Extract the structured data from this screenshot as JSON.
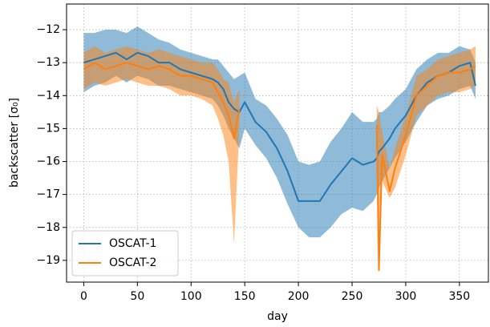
{
  "chart_data": {
    "type": "line-band",
    "x_label": "day",
    "y_label": "backscatter [σ₀]",
    "xlim": [
      -16,
      377
    ],
    "ylim": [
      -19.66,
      -11.22
    ],
    "xticks": [
      0,
      50,
      100,
      150,
      200,
      250,
      300,
      350
    ],
    "yticks": [
      {
        "value": -19,
        "label": "−19"
      },
      {
        "value": -18,
        "label": "−18"
      },
      {
        "value": -17,
        "label": "−17"
      },
      {
        "value": -16,
        "label": "−16"
      },
      {
        "value": -15,
        "label": "−15"
      },
      {
        "value": -14,
        "label": "−14"
      },
      {
        "value": -13,
        "label": "−13"
      },
      {
        "value": -12,
        "label": "−12"
      }
    ],
    "grid": true,
    "legend": "lower left",
    "x": [
      0,
      10,
      20,
      30,
      40,
      50,
      60,
      70,
      80,
      90,
      100,
      110,
      120,
      125,
      130,
      135,
      140,
      145,
      150,
      160,
      170,
      180,
      190,
      200,
      210,
      220,
      230,
      240,
      250,
      260,
      270,
      273,
      275,
      278,
      285,
      290,
      300,
      310,
      320,
      330,
      340,
      350,
      360,
      365
    ],
    "series": [
      {
        "name": "OSCAT-1",
        "color": "#1f77b4",
        "values": [
          -13.0,
          -12.9,
          -12.8,
          -12.7,
          -12.9,
          -12.7,
          -12.8,
          -13.0,
          -13.0,
          -13.2,
          -13.3,
          -13.4,
          -13.5,
          -13.6,
          -13.8,
          -14.2,
          -14.4,
          -14.5,
          -14.2,
          -14.8,
          -15.1,
          -15.6,
          -16.3,
          -17.2,
          -17.2,
          -17.2,
          -16.7,
          -16.3,
          -15.9,
          -16.1,
          -16.0,
          -15.9,
          -15.7,
          -15.6,
          -15.3,
          -15.0,
          -14.6,
          -14.0,
          -13.6,
          -13.4,
          -13.3,
          -13.1,
          -13.0,
          -13.7
        ],
        "lower": [
          -13.9,
          -13.7,
          -13.6,
          -13.4,
          -13.6,
          -13.4,
          -13.5,
          -13.7,
          -13.7,
          -13.8,
          -13.9,
          -14.0,
          -14.1,
          -14.3,
          -14.6,
          -15.0,
          -15.3,
          -15.6,
          -15.0,
          -15.5,
          -15.9,
          -16.5,
          -17.3,
          -18.0,
          -18.3,
          -18.3,
          -18.0,
          -17.6,
          -17.4,
          -17.5,
          -17.2,
          -17.0,
          -16.8,
          -16.6,
          -16.2,
          -15.9,
          -15.4,
          -14.8,
          -14.3,
          -14.1,
          -14.0,
          -13.8,
          -13.7,
          -14.1
        ],
        "upper": [
          -12.1,
          -12.1,
          -12.0,
          -12.0,
          -12.1,
          -11.9,
          -12.1,
          -12.3,
          -12.4,
          -12.6,
          -12.7,
          -12.8,
          -12.9,
          -12.9,
          -13.1,
          -13.3,
          -13.5,
          -13.4,
          -13.3,
          -14.1,
          -14.3,
          -14.7,
          -15.2,
          -16.0,
          -16.1,
          -16.0,
          -15.4,
          -15.0,
          -14.5,
          -14.8,
          -14.8,
          -14.7,
          -14.5,
          -14.5,
          -14.3,
          -14.1,
          -13.8,
          -13.2,
          -12.9,
          -12.7,
          -12.7,
          -12.5,
          -12.6,
          -13.0
        ]
      },
      {
        "name": "OSCAT-2",
        "color": "#ff7f0e",
        "values": [
          -13.2,
          -13.0,
          -13.2,
          -13.1,
          -13.0,
          -13.1,
          -13.2,
          -13.1,
          -13.2,
          -13.4,
          -13.4,
          -13.5,
          -13.6,
          -13.9,
          -14.2,
          -14.6,
          -15.3,
          -14.4,
          null,
          null,
          null,
          null,
          null,
          null,
          null,
          null,
          null,
          null,
          null,
          null,
          null,
          -14.9,
          -19.3,
          -15.8,
          -16.9,
          -16.2,
          -15.2,
          -14.0,
          -13.7,
          -13.4,
          -13.3,
          -13.3,
          -13.2,
          -13.1
        ],
        "lower": [
          -13.8,
          -13.6,
          -13.7,
          -13.6,
          -13.5,
          -13.6,
          -13.7,
          -13.7,
          -13.8,
          -14.0,
          -14.0,
          -14.1,
          -14.3,
          -14.7,
          -15.2,
          -16.0,
          -18.5,
          -15.0,
          null,
          null,
          null,
          null,
          null,
          null,
          null,
          null,
          null,
          null,
          null,
          null,
          null,
          -15.5,
          -19.4,
          -16.6,
          -17.1,
          -16.8,
          -15.8,
          -14.6,
          -14.3,
          -14.0,
          -13.9,
          -13.9,
          -13.8,
          -13.7
        ],
        "upper": [
          -12.7,
          -12.5,
          -12.7,
          -12.6,
          -12.5,
          -12.6,
          -12.7,
          -12.6,
          -12.7,
          -12.8,
          -12.9,
          -13.0,
          -13.0,
          -13.2,
          -13.5,
          -13.6,
          -14.2,
          -13.8,
          null,
          null,
          null,
          null,
          null,
          null,
          null,
          null,
          null,
          null,
          null,
          null,
          null,
          -14.3,
          -14.5,
          -15.1,
          -16.2,
          -15.6,
          -14.6,
          -13.4,
          -13.2,
          -12.9,
          -12.8,
          -12.7,
          -12.6,
          -12.5
        ]
      }
    ]
  }
}
